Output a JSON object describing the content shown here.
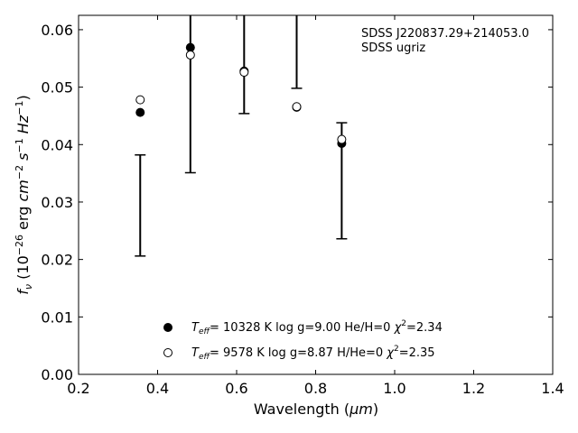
{
  "chart_data": {
    "type": "scatter",
    "xlabel_main": "Wavelength (",
    "xlabel_unit": "μm",
    "xlabel_close": ")",
    "ylabel_f": "f",
    "ylabel_sub": "ν",
    "ylabel_rest": " (10",
    "ylabel_exp": "−26",
    "ylabel_units": " erg ",
    "ylabel_cm": "cm",
    "ylabel_cm_exp": "−2",
    "ylabel_s": " s",
    "ylabel_s_exp": "−1",
    "ylabel_hz": " Hz",
    "ylabel_hz_exp": "−1",
    "ylabel_end": ")",
    "xlim": [
      0.2,
      1.4
    ],
    "ylim": [
      0.0,
      0.0625
    ],
    "xticks": [
      "0.2",
      "0.4",
      "0.6",
      "0.8",
      "1.0",
      "1.2",
      "1.4"
    ],
    "xtick_values": [
      0.2,
      0.4,
      0.6,
      0.8,
      1.0,
      1.2,
      1.4
    ],
    "yticks": [
      "0.00",
      "0.01",
      "0.02",
      "0.03",
      "0.04",
      "0.05",
      "0.06"
    ],
    "ytick_values": [
      0.0,
      0.01,
      0.02,
      0.03,
      0.04,
      0.05,
      0.06
    ],
    "annotations": [
      "SDSS J220837.29+214053.0",
      "SDSS ugriz"
    ],
    "observed": {
      "x": [
        0.356,
        0.483,
        0.619,
        0.752,
        0.866
      ],
      "ylow": [
        0.0206,
        0.0351,
        0.0454,
        0.0498,
        0.0236
      ],
      "yhigh": [
        0.0382,
        0.07,
        0.07,
        0.07,
        0.0438
      ]
    },
    "series": [
      {
        "marker": "filled",
        "x": [
          0.356,
          0.483,
          0.619,
          0.752,
          0.866
        ],
        "values": [
          0.0456,
          0.0569,
          0.0528,
          0.0465,
          0.0402
        ],
        "legend": {
          "teff_sym": "T",
          "teff_sub": "eff",
          "teff_rest": "= 10328 K  log g=9.00  He/H=0  ",
          "chi": "χ",
          "chi_exp": "2",
          "chi_rest": "=2.34"
        }
      },
      {
        "marker": "open",
        "x": [
          0.356,
          0.483,
          0.619,
          0.752,
          0.866
        ],
        "values": [
          0.0478,
          0.0556,
          0.0526,
          0.0466,
          0.0409
        ],
        "legend": {
          "teff_sym": "T",
          "teff_sub": "eff",
          "teff_rest": "=  9578 K  log g=8.87  H/He=0  ",
          "chi": "χ",
          "chi_exp": "2",
          "chi_rest": "=2.35"
        }
      }
    ],
    "colors": {
      "marker": "#000000",
      "background": "#ffffff"
    }
  }
}
